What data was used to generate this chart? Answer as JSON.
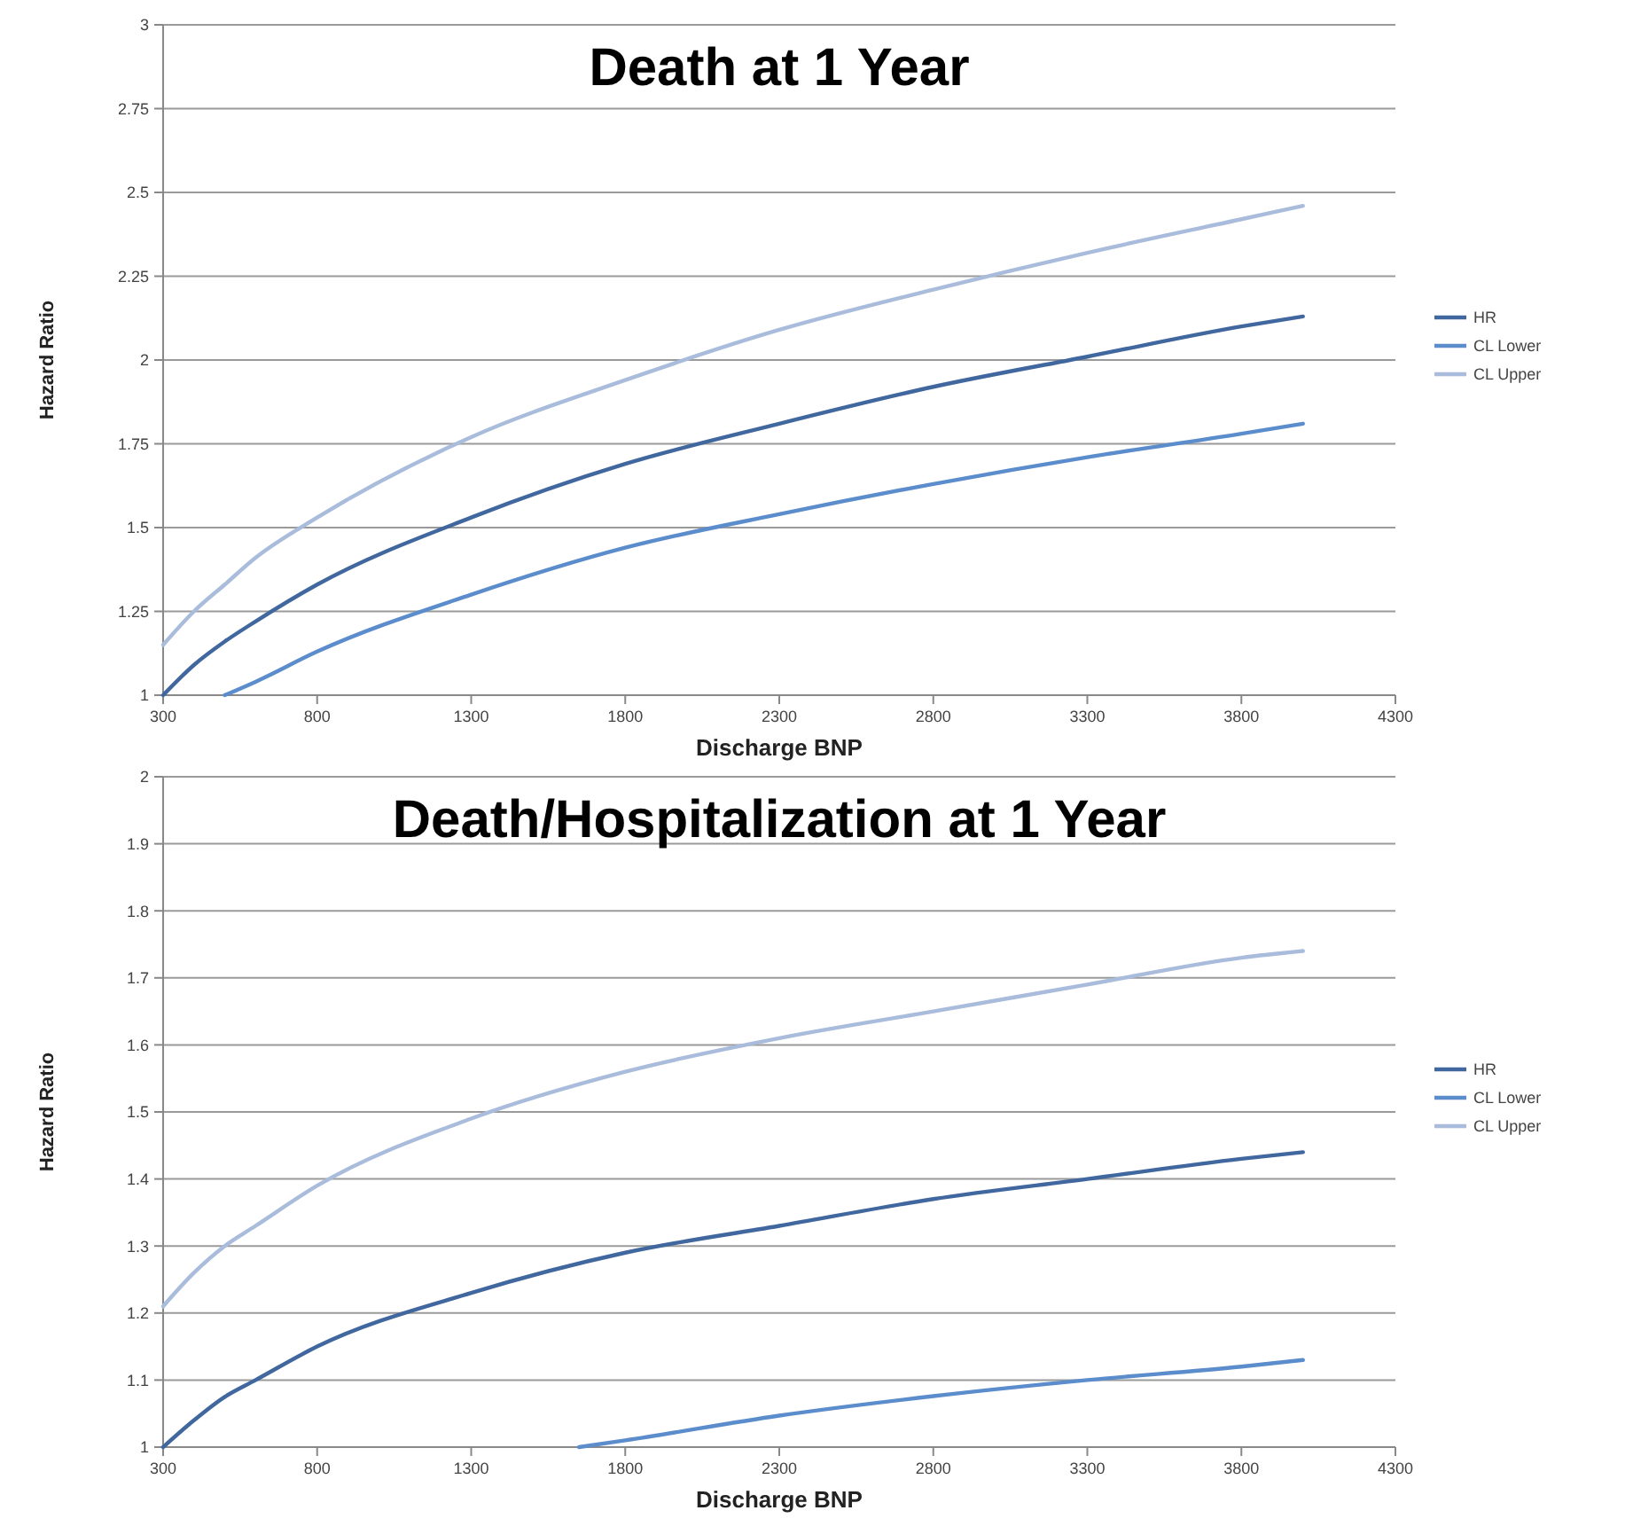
{
  "chart_data": [
    {
      "type": "line",
      "title": "Death at 1 Year",
      "xlabel": "Discharge BNP",
      "ylabel": "Hazard Ratio",
      "xlim": [
        300,
        4300
      ],
      "xticks": [
        300,
        800,
        1300,
        1800,
        2300,
        2800,
        3300,
        3800,
        4300
      ],
      "ylim": [
        1,
        3
      ],
      "yticks": [
        1,
        1.25,
        1.5,
        1.75,
        2,
        2.25,
        2.5,
        2.75,
        3
      ],
      "grid": "y",
      "legend": "right",
      "marker": "none",
      "line_style": "solid",
      "series": [
        {
          "name": "HR",
          "color": "#41679f",
          "x": [
            300,
            400,
            500,
            600,
            800,
            1300,
            1800,
            2300,
            2800,
            3300,
            3800,
            4000
          ],
          "values": [
            1.0,
            1.09,
            1.16,
            1.22,
            1.33,
            1.53,
            1.69,
            1.81,
            1.92,
            2.01,
            2.1,
            2.13
          ]
        },
        {
          "name": "CL Lower",
          "color": "#5b8ccc",
          "x": [
            500,
            600,
            800,
            1300,
            1800,
            2300,
            2800,
            3300,
            3800,
            4000
          ],
          "values": [
            1.0,
            1.04,
            1.13,
            1.3,
            1.44,
            1.54,
            1.63,
            1.71,
            1.78,
            1.81
          ]
        },
        {
          "name": "CL Upper",
          "color": "#a9bcdc",
          "x": [
            300,
            400,
            500,
            600,
            800,
            1300,
            1800,
            2300,
            2800,
            3300,
            3800,
            4000
          ],
          "values": [
            1.15,
            1.25,
            1.33,
            1.41,
            1.53,
            1.77,
            1.94,
            2.09,
            2.21,
            2.32,
            2.42,
            2.46
          ]
        }
      ]
    },
    {
      "type": "line",
      "title": "Death/Hospitalization at 1 Year",
      "xlabel": "Discharge BNP",
      "ylabel": "Hazard Ratio",
      "xlim": [
        300,
        4300
      ],
      "xticks": [
        300,
        800,
        1300,
        1800,
        2300,
        2800,
        3300,
        3800,
        4300
      ],
      "ylim": [
        1,
        2
      ],
      "yticks": [
        1,
        1.1,
        1.2,
        1.3,
        1.4,
        1.5,
        1.6,
        1.7,
        1.8,
        1.9,
        2
      ],
      "grid": "y",
      "legend": "right",
      "marker": "none",
      "line_style": "solid",
      "series": [
        {
          "name": "HR",
          "color": "#41679f",
          "x": [
            300,
            400,
            500,
            600,
            800,
            1300,
            1800,
            2300,
            2800,
            3300,
            3800,
            4000
          ],
          "values": [
            1.0,
            1.04,
            1.075,
            1.1,
            1.15,
            1.23,
            1.29,
            1.33,
            1.37,
            1.4,
            1.43,
            1.44
          ]
        },
        {
          "name": "CL Lower",
          "color": "#5b8ccc",
          "x": [
            1650,
            1800,
            2300,
            2800,
            3300,
            3800,
            4000
          ],
          "values": [
            1.0,
            1.01,
            1.047,
            1.076,
            1.1,
            1.12,
            1.13
          ]
        },
        {
          "name": "CL Upper",
          "color": "#a9bcdc",
          "x": [
            300,
            400,
            500,
            600,
            800,
            1300,
            1800,
            2300,
            2800,
            3300,
            3800,
            4000
          ],
          "values": [
            1.21,
            1.26,
            1.3,
            1.33,
            1.39,
            1.49,
            1.56,
            1.61,
            1.65,
            1.69,
            1.73,
            1.74
          ]
        }
      ]
    }
  ]
}
